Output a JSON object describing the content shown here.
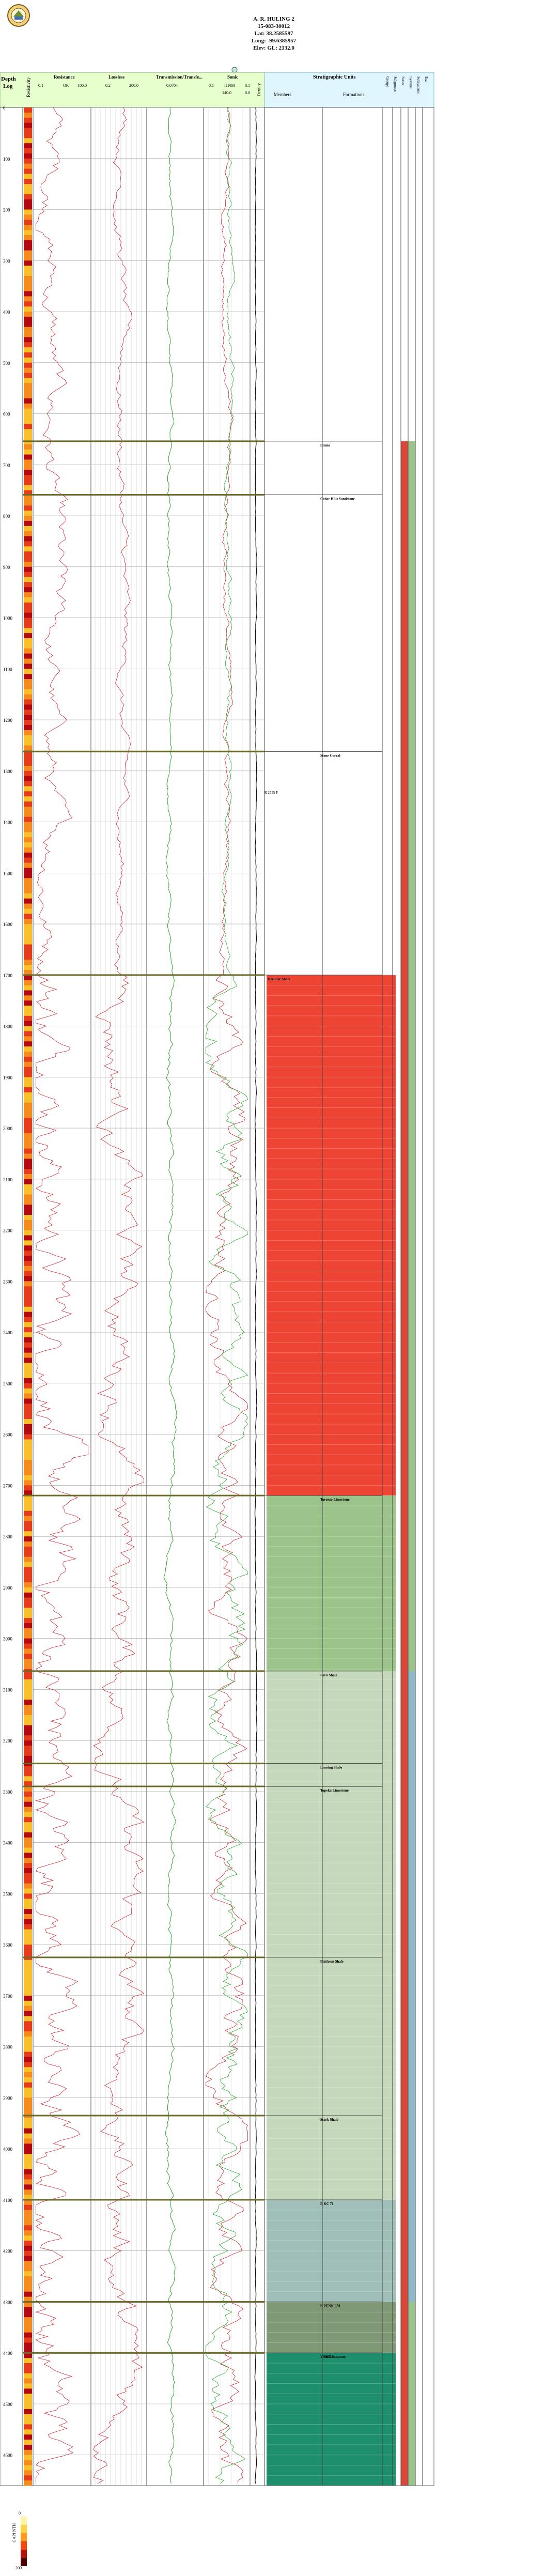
{
  "header": {
    "well_name": "A. R. HULING 2",
    "api": "15-083-30012",
    "lat": "Lat: 38.2585597",
    "long": "Long: -99.6385957",
    "elev": "Elev: GL: 2132.0"
  },
  "track_titles": {
    "depth": "Depth",
    "log": "Log",
    "resistivity": "Resistivity",
    "resistance": "Resistance",
    "lossless": "Lossless",
    "transmission": "Transmission/Transfe...",
    "sonic": "Sonic",
    "density": "Density",
    "strat_units": "Stratigraphic Units",
    "members": "Members",
    "formations": "Formations",
    "col_labels": [
      "Groups",
      "Subgroups",
      "Series",
      "Systems",
      "Subsystems",
      "Era"
    ]
  },
  "scale_labels": {
    "resistance": [
      "0.1",
      "OR",
      "100.0"
    ],
    "lossless": [
      "0.2",
      "200.0"
    ],
    "transmission": [
      "0.0704"
    ],
    "sonic": [
      "0.1",
      "ITNM",
      "0.1"
    ],
    "sonic_row2": [
      "140.0",
      "0.0"
    ]
  },
  "depth_ticks": [
    "0",
    "100",
    "200",
    "300",
    "400",
    "500",
    "600",
    "700",
    "800",
    "900",
    "1000",
    "1100",
    "1200",
    "1300",
    "1400",
    "1500",
    "1600",
    "1700",
    "1800",
    "1900",
    "2000",
    "2100",
    "2200",
    "2300",
    "2400",
    "2500",
    "2600",
    "2700",
    "2800",
    "2900",
    "3000",
    "3100",
    "3200",
    "3300",
    "3400",
    "3500",
    "3600",
    "3700",
    "3800",
    "3900",
    "4000",
    "4100",
    "4200",
    "4300",
    "4400",
    "4500",
    "4600"
  ],
  "formation_tops": [
    {
      "name": "Blaine",
      "depth": 654
    },
    {
      "name": "Cedar Hills Sandstone",
      "depth": 759
    },
    {
      "name": "Stone Corral",
      "depth": 1262
    },
    {
      "name": "Heebner Shale",
      "depth": 1700
    },
    {
      "name": "Toronto Limestone",
      "depth": 2720
    },
    {
      "name": "Bern Shale",
      "depth": 3064
    },
    {
      "name": "Lansing Shale",
      "depth": 3245
    },
    {
      "name": "Topeka Limestone",
      "depth": 3290
    },
    {
      "name": "Platform Shale",
      "depth": 3625
    },
    {
      "name": "Stark Shale",
      "depth": 3935
    },
    {
      "name": "B KC 71",
      "depth": 4100
    },
    {
      "name": "B PENN LM",
      "depth": 4300
    },
    {
      "name": "V SHOP",
      "depth": 4400
    },
    {
      "name": "Viola Limestone",
      "depth": 4400
    }
  ],
  "sample_marker": "R 2755 F",
  "legend": {
    "title": "GAPI NTH",
    "min": "0",
    "max": "200"
  },
  "colors": {
    "header_bg": "#e6ffcc",
    "strat_header_bg": "#e0f6ff",
    "top_line": "#6b6b2a",
    "red_zone": "#ee4433",
    "green_zone": "#9cc48a",
    "pale_zone": "#c6d8bc",
    "teal_zone": "#9fbfb8",
    "olive_zone": "#7f9975",
    "deep_teal_zone": "#1d8f6c",
    "curve_red": "#d0202a",
    "curve_green": "#21a521",
    "curve_blue": "#2a3fd6"
  }
}
